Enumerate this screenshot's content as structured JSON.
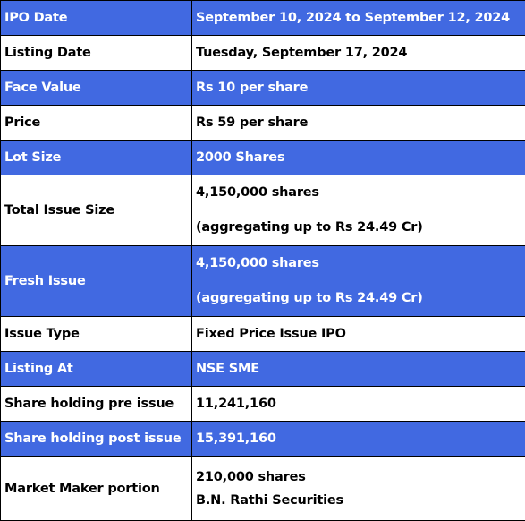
{
  "rows": [
    {
      "label": "IPO Date",
      "lines": [
        "September 10, 2024 to September 12, 2024"
      ]
    },
    {
      "label": "Listing Date",
      "lines": [
        "Tuesday, September 17, 2024"
      ]
    },
    {
      "label": "Face Value",
      "lines": [
        "Rs 10 per share"
      ]
    },
    {
      "label": "Price",
      "lines": [
        "Rs 59 per share"
      ]
    },
    {
      "label": "Lot Size",
      "lines": [
        "2000 Shares"
      ]
    },
    {
      "label": "Total Issue Size",
      "lines": [
        "4,150,000 shares",
        "(aggregating up to Rs 24.49 Cr)"
      ]
    },
    {
      "label": "Fresh Issue",
      "lines": [
        "4,150,000 shares",
        "(aggregating up to Rs 24.49 Cr)"
      ]
    },
    {
      "label": "Issue Type",
      "lines": [
        "Fixed Price Issue IPO"
      ]
    },
    {
      "label": "Listing At",
      "lines": [
        "NSE SME"
      ]
    },
    {
      "label": "Share holding pre issue",
      "lines": [
        "11,241,160"
      ]
    },
    {
      "label": "Share holding post issue",
      "lines": [
        "15,391,160"
      ]
    },
    {
      "label": "Market Maker portion",
      "lines": [
        "210,000 shares",
        "B.N. Rathi Securities"
      ]
    }
  ],
  "colors": {
    "header_blue": "#4169e1",
    "white": "#ffffff",
    "text_dark": "#000000",
    "border": "#000000"
  }
}
